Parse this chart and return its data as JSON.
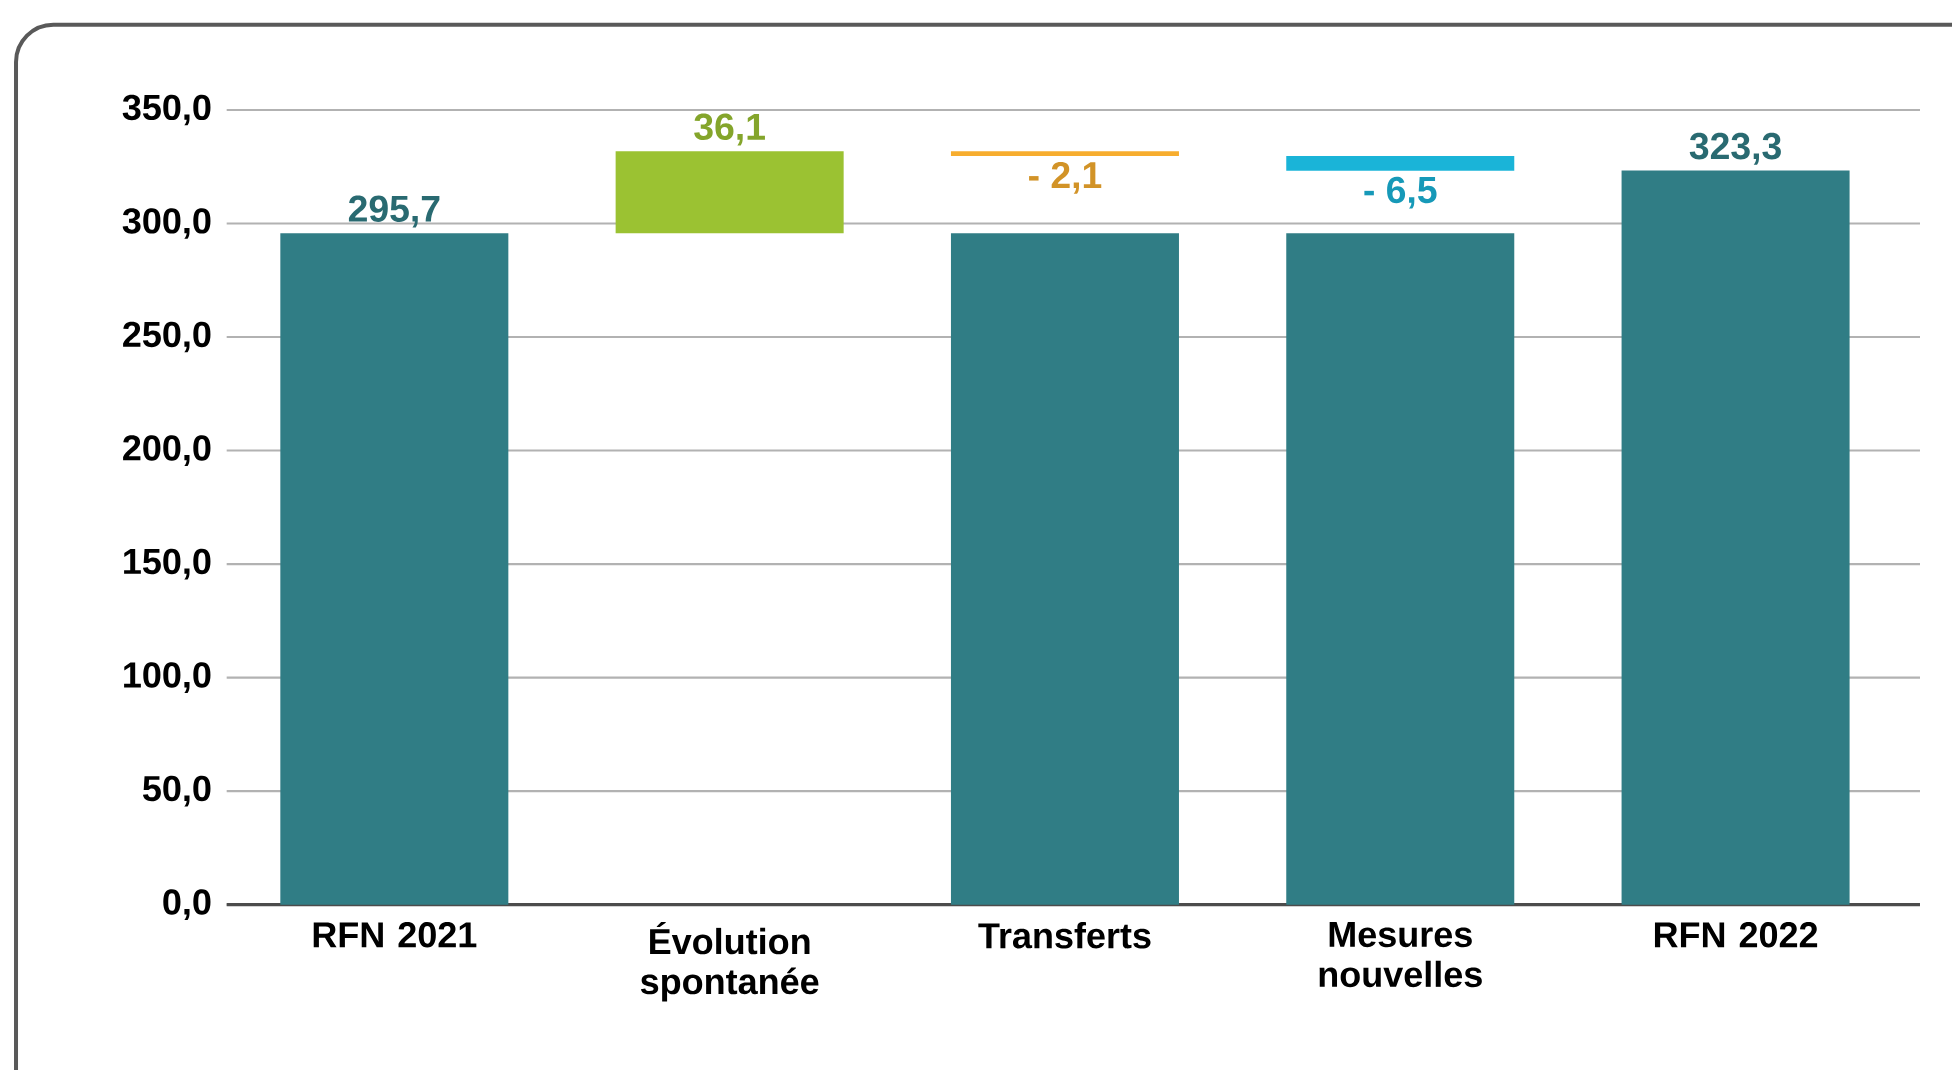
{
  "chart_data": {
    "type": "bar",
    "categories": [
      "RFN 2021",
      "Évolution spontanée",
      "Transferts",
      "Mesures nouvelles",
      "RFN 2022"
    ],
    "series": [
      {
        "color": "#307d85",
        "values": [
          295.7,
          null,
          295.7,
          295.7,
          323.3
        ],
        "value_labels": [
          "295,7",
          null,
          null,
          null,
          "323,3"
        ]
      },
      {
        "colors": [
          null,
          "#9bc232",
          "#f7ad2e",
          "#1ab4d8",
          null
        ],
        "values": [
          null,
          36.1,
          -2.1,
          -6.5,
          null
        ],
        "base": [
          null,
          295.7,
          331.8,
          329.7,
          null
        ],
        "value_labels": [
          null,
          "36,1",
          "- 2,1",
          "- 6,5",
          null
        ]
      }
    ],
    "ylim": [
      0,
      350
    ],
    "yticks": [
      {
        "value": 0,
        "label": "0,0"
      },
      {
        "value": 50,
        "label": "50,0"
      },
      {
        "value": 100,
        "label": "100,0"
      },
      {
        "value": 150,
        "label": "150,0"
      },
      {
        "value": 200,
        "label": "200,0"
      },
      {
        "value": 250,
        "label": "250,0"
      },
      {
        "value": 300,
        "label": "300,0"
      },
      {
        "value": 350,
        "label": "350,0"
      }
    ],
    "grid": "y"
  }
}
